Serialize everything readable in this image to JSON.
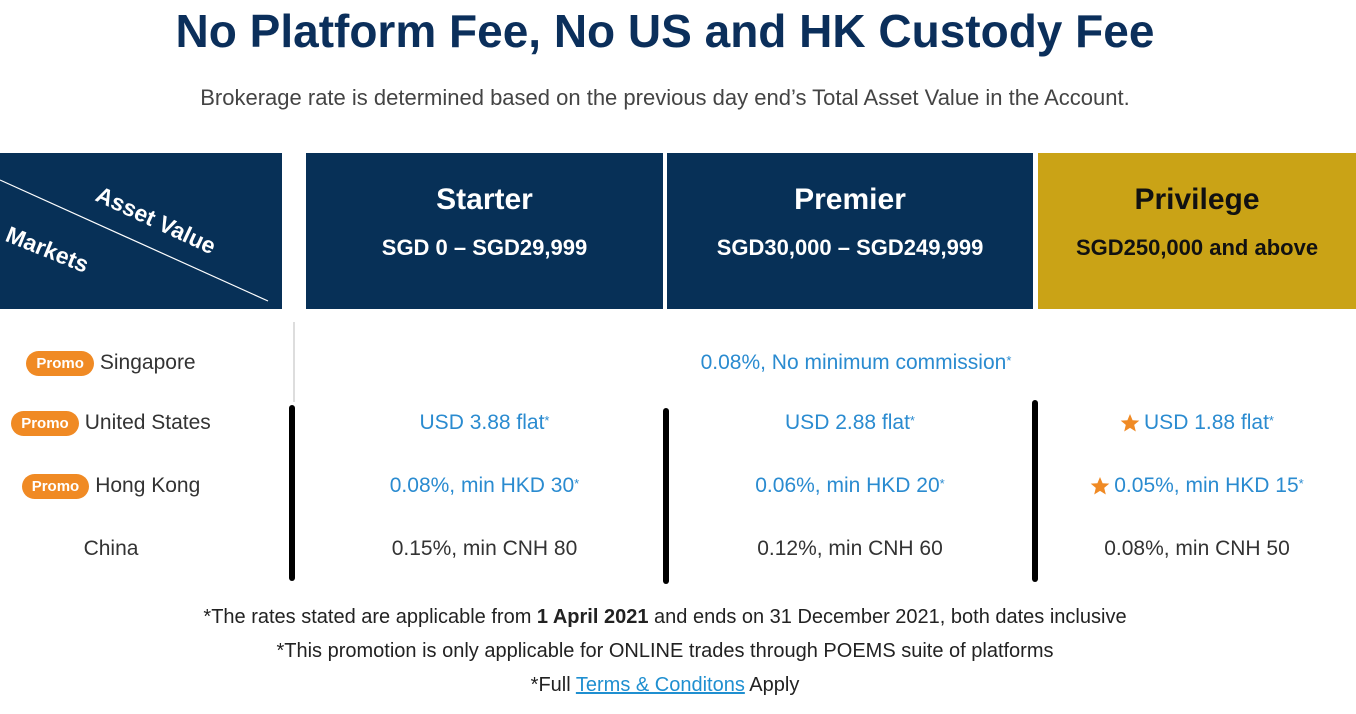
{
  "header": {
    "title": "No Platform Fee, No US and HK Custody Fee",
    "subtitle": "Brokerage rate is determined based on the previous day end’s Total Asset Value in the Account."
  },
  "table": {
    "corner": {
      "top": "Asset Value",
      "bottom": "Markets"
    },
    "tiers": [
      {
        "name": "Starter",
        "range": "SGD 0 – SGD29,999"
      },
      {
        "name": "Premier",
        "range": "SGD30,000 – SGD249,999"
      },
      {
        "name": "Privilege",
        "range": "SGD250,000 and above"
      }
    ],
    "rows": [
      {
        "badge": "Promo",
        "market": "Singapore",
        "rates": [
          {
            "text": "0.08%, No minimum commission",
            "mark": "*"
          }
        ]
      },
      {
        "badge": "Promo",
        "market": "United States",
        "rates": [
          {
            "text": "USD 3.88 flat",
            "mark": "*"
          },
          {
            "text": "USD 2.88 flat",
            "mark": "*"
          },
          {
            "text": "USD 1.88 flat",
            "mark": "*"
          }
        ]
      },
      {
        "badge": "Promo",
        "market": "Hong Kong",
        "rates": [
          {
            "text": "0.08%, min HKD 30",
            "mark": "*"
          },
          {
            "text": "0.06%, min HKD 20",
            "mark": "*"
          },
          {
            "text": "0.05%, min HKD 15",
            "mark": "*"
          }
        ]
      },
      {
        "market": "China",
        "rates": [
          {
            "text": "0.15%, min CNH 80"
          },
          {
            "text": "0.12%, min CNH 60"
          },
          {
            "text": "0.08%, min CNH 50"
          }
        ]
      }
    ]
  },
  "footnotes": [
    {
      "before": "*The rates stated are applicable from ",
      "bold": "1 April 2021",
      "after": " and ends on 31 December 2021, both dates inclusive"
    },
    {
      "text": "*This promotion is only applicable for ONLINE trades through POEMS suite of platforms"
    },
    {
      "before": "*Full ",
      "link": "Terms & Conditons",
      "after": " Apply"
    }
  ]
}
